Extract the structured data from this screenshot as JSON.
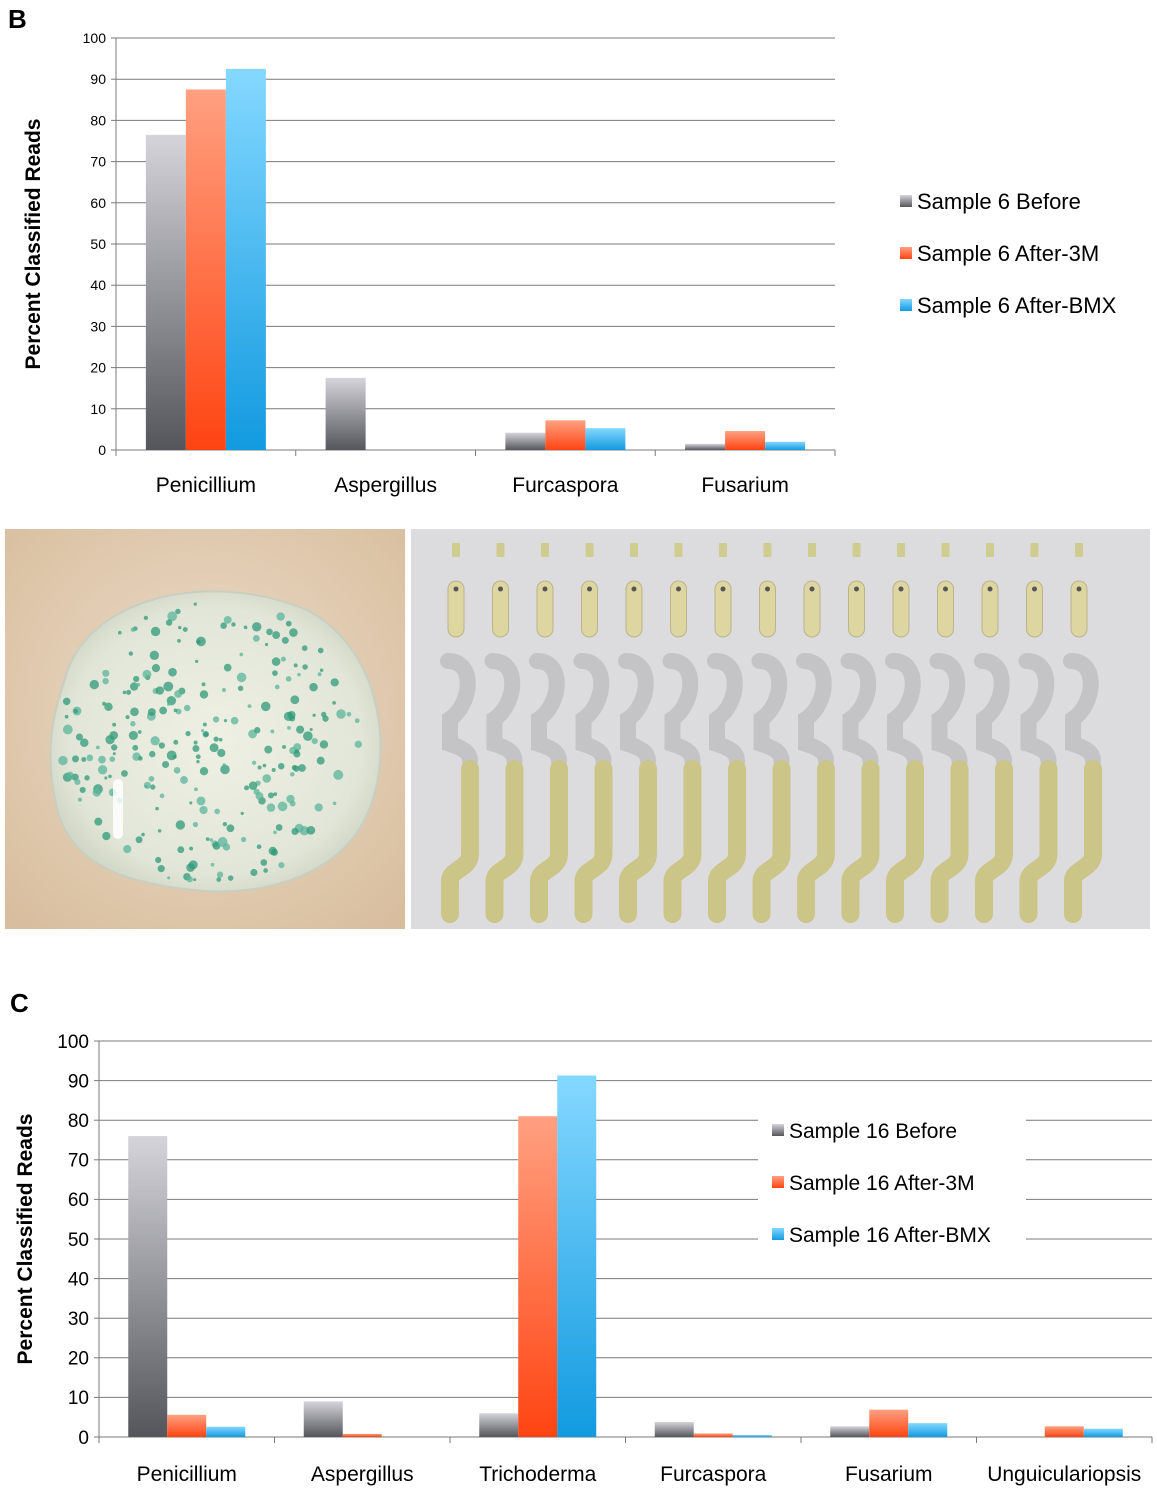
{
  "panel_b_label": "B",
  "panel_c_label": "C",
  "colors": {
    "before": [
      "#d4d4da",
      "#55555c"
    ],
    "after_3m": [
      "#ffa080",
      "#ff4412"
    ],
    "after_bmx": [
      "#84d8ff",
      "#129ae0"
    ],
    "grid": "#7a7a7a",
    "axis": "#7a7a7a"
  },
  "photos": {
    "plate_icon": "agar-plate-with-green-colonies",
    "cartridge_icon": "sampling-cartridge-strips"
  },
  "chart_data": [
    {
      "type": "bar",
      "ylabel": "Percent Classified Reads",
      "ylim": [
        0,
        100
      ],
      "yticks": [
        0,
        10,
        20,
        30,
        40,
        50,
        60,
        70,
        80,
        90,
        100
      ],
      "grid": true,
      "legend_position": "right",
      "categories": [
        "Penicillium",
        "Aspergillus",
        "Furcaspora",
        "Fusarium"
      ],
      "series": [
        {
          "name": "Sample 6 Before",
          "values": [
            76.5,
            17.5,
            4.2,
            1.5
          ]
        },
        {
          "name": "Sample 6 After-3M",
          "values": [
            87.5,
            0,
            7.2,
            4.6
          ]
        },
        {
          "name": "Sample 6 After-BMX",
          "values": [
            92.5,
            0,
            5.3,
            2.0
          ]
        }
      ]
    },
    {
      "type": "bar",
      "ylabel": "Percent Classified Reads",
      "ylim": [
        0,
        100
      ],
      "yticks": [
        0,
        10,
        20,
        30,
        40,
        50,
        60,
        70,
        80,
        90,
        100
      ],
      "grid": true,
      "legend_position": "top-right",
      "categories": [
        "Penicillium",
        "Aspergillus",
        "Trichoderma",
        "Furcaspora",
        "Fusarium",
        "Unguiculariopsis"
      ],
      "series": [
        {
          "name": "Sample 16 Before",
          "values": [
            76,
            9,
            6,
            3.8,
            2.7,
            0
          ]
        },
        {
          "name": "Sample 16 After-3M",
          "values": [
            5.6,
            0.8,
            81,
            0.9,
            6.9,
            2.7
          ]
        },
        {
          "name": "Sample 16 After-BMX",
          "values": [
            2.6,
            0,
            91.3,
            0.5,
            3.5,
            2.1
          ]
        }
      ]
    }
  ]
}
